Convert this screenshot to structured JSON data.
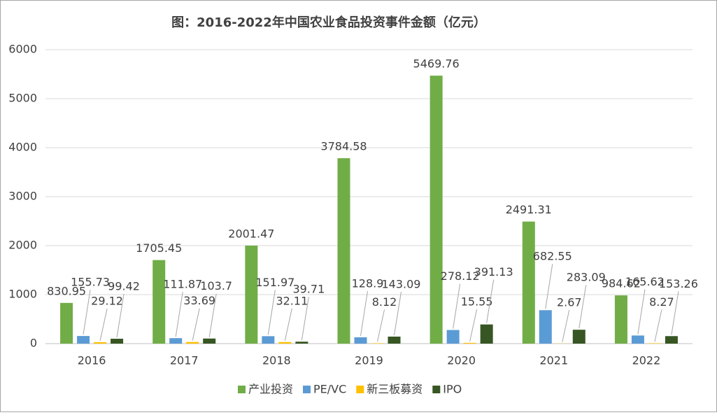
{
  "chart_data": {
    "type": "bar",
    "title": "图：2016-2022年中国农业食品投资事件金额（亿元）",
    "categories": [
      "2016",
      "2017",
      "2018",
      "2019",
      "2020",
      "2021",
      "2022"
    ],
    "series": [
      {
        "name": "产业投资",
        "color": "#70ad47",
        "values": [
          830.95,
          1705.45,
          2001.47,
          3784.58,
          5469.76,
          2491.31,
          984.62
        ]
      },
      {
        "name": "PE/VC",
        "color": "#5b9bd5",
        "values": [
          155.73,
          111.87,
          151.97,
          128.9,
          278.12,
          682.55,
          165.62
        ]
      },
      {
        "name": "新三板募资",
        "color": "#ffc000",
        "values": [
          29.12,
          33.69,
          32.11,
          8.12,
          15.55,
          2.67,
          8.27
        ]
      },
      {
        "name": "IPO",
        "color": "#375623",
        "values": [
          99.42,
          103.7,
          39.71,
          143.09,
          391.13,
          283.09,
          153.26
        ]
      }
    ],
    "ylim": [
      0,
      6000
    ],
    "yticks": [
      0,
      1000,
      2000,
      3000,
      4000,
      5000,
      6000
    ],
    "grid": true,
    "legend": "bottom"
  }
}
